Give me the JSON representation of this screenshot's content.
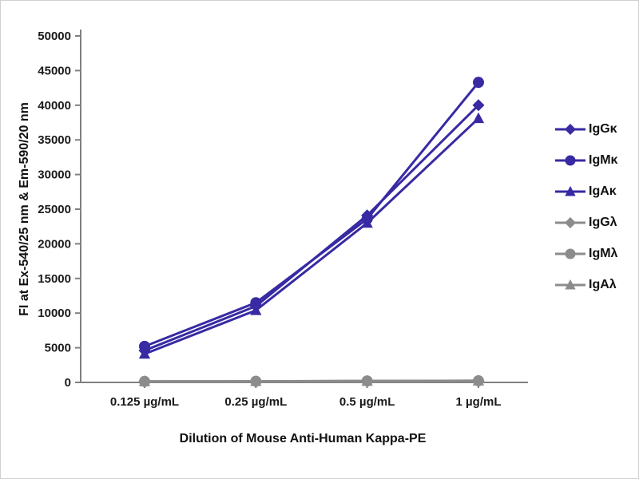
{
  "chart_data": {
    "type": "line",
    "title": "",
    "xlabel": "Dilution of Mouse Anti-Human Kappa-PE",
    "ylabel": "FI at Ex-540/25 nm & Em-590/20 nm",
    "categories": [
      "0.125 µg/mL",
      "0.25 µg/mL",
      "0.5 µg/mL",
      "1 µg/mL"
    ],
    "ylim": [
      0,
      50000
    ],
    "yticks": [
      0,
      5000,
      10000,
      15000,
      20000,
      25000,
      30000,
      35000,
      40000,
      45000,
      50000
    ],
    "grid": false,
    "legend_position": "right",
    "axis_color": "#808080",
    "series": [
      {
        "name": "IgGκ",
        "marker": "diamond",
        "color": "#372aa3",
        "values": [
          4600,
          11000,
          24100,
          40000
        ]
      },
      {
        "name": "IgMκ",
        "marker": "circle",
        "color": "#372aa3",
        "values": [
          5200,
          11500,
          23600,
          43300
        ]
      },
      {
        "name": "IgAκ",
        "marker": "triangle",
        "color": "#372aa3",
        "values": [
          4100,
          10400,
          23000,
          38100
        ]
      },
      {
        "name": "IgGλ",
        "marker": "diamond",
        "color": "#8c8c8c",
        "values": [
          150,
          150,
          200,
          250
        ]
      },
      {
        "name": "IgMλ",
        "marker": "circle",
        "color": "#8c8c8c",
        "values": [
          140,
          160,
          210,
          240
        ]
      },
      {
        "name": "IgAλ",
        "marker": "triangle",
        "color": "#8c8c8c",
        "values": [
          130,
          150,
          190,
          230
        ]
      }
    ]
  }
}
